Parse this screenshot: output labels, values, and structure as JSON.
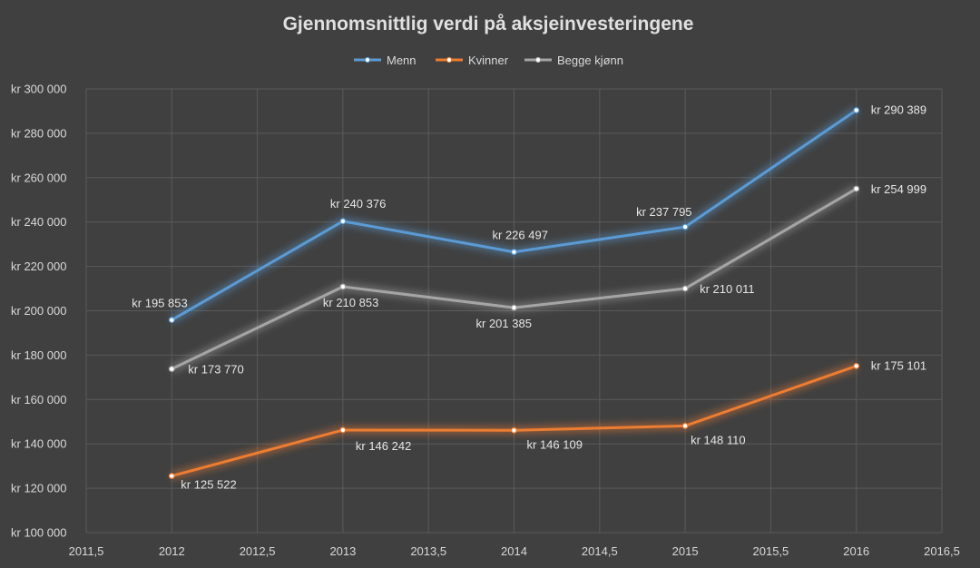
{
  "chart_data": {
    "type": "scatter",
    "title": "Gjennomsnittlig verdi på aksjeinvesteringene",
    "xlim": [
      2011.5,
      2016.5
    ],
    "ylim": [
      100000,
      300000
    ],
    "x_ticks": [
      "2011,5",
      "2012",
      "2012,5",
      "2013",
      "2013,5",
      "2014",
      "2014,5",
      "2015",
      "2015,5",
      "2016",
      "2016,5"
    ],
    "y_ticks": [
      "kr 100 000",
      "kr 120 000",
      "kr 140 000",
      "kr 160 000",
      "kr 180 000",
      "kr 200 000",
      "kr 220 000",
      "kr 240 000",
      "kr 260 000",
      "kr 280 000",
      "kr 300 000"
    ],
    "grid": true,
    "legend_position": "top",
    "x": [
      2012,
      2013,
      2014,
      2015,
      2016
    ],
    "series": [
      {
        "name": "Menn",
        "color": "#5b9bd5",
        "values": [
          195853,
          240376,
          226497,
          237795,
          290389
        ],
        "labels": [
          "kr 195 853",
          "kr 240 376",
          "kr 226 497",
          "kr 237 795",
          "kr 290 389"
        ]
      },
      {
        "name": "Kvinner",
        "color": "#ed7d31",
        "values": [
          125522,
          146242,
          146109,
          148110,
          175101
        ],
        "labels": [
          "kr 125 522",
          "kr 146 242",
          "kr 146 109",
          "kr 148 110",
          "kr 175 101"
        ]
      },
      {
        "name": "Begge kjønn",
        "color": "#a5a5a5",
        "values": [
          173770,
          210853,
          201385,
          210011,
          254999
        ],
        "labels": [
          "kr 173 770",
          "kr 210 853",
          "kr 201 385",
          "kr 210 011",
          "kr 254 999"
        ]
      }
    ]
  }
}
